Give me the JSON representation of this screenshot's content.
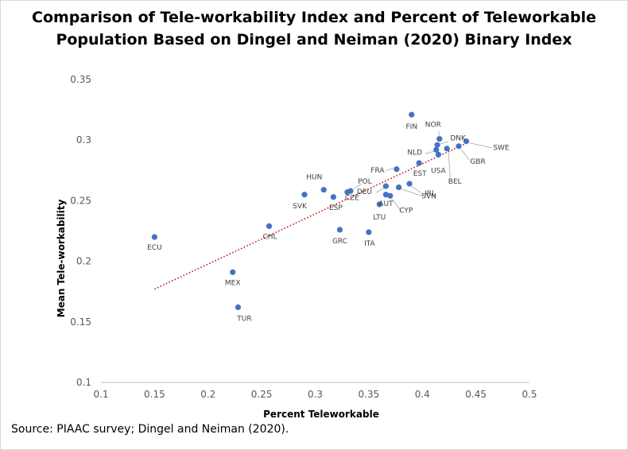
{
  "chart_data": {
    "type": "scatter",
    "title_lines": [
      "Comparison of Tele-workability Index and Percent of Teleworkable",
      "Population Based on Dingel and Neiman (2020) Binary Index"
    ],
    "xlabel": "Percent Teleworkable",
    "ylabel": "Mean Tele-workability",
    "xlim": [
      0.1,
      0.5
    ],
    "ylim": [
      0.1,
      0.35
    ],
    "xticks": [
      "0.1",
      "0.15",
      "0.2",
      "0.25",
      "0.3",
      "0.35",
      "0.4",
      "0.45",
      "0.5"
    ],
    "yticks": [
      "0.1",
      "0.15",
      "0.2",
      "0.25",
      "0.3",
      "0.35"
    ],
    "marker_color": "#4472C4",
    "trendline": {
      "style": "dotted",
      "color": "#C00000",
      "x": [
        0.15,
        0.44
      ],
      "y": [
        0.177,
        0.297
      ]
    },
    "points": [
      {
        "label": "ECU",
        "x": 0.15,
        "y": 0.22
      },
      {
        "label": "MEX",
        "x": 0.223,
        "y": 0.191
      },
      {
        "label": "TUR",
        "x": 0.228,
        "y": 0.162
      },
      {
        "label": "CHL",
        "x": 0.257,
        "y": 0.229
      },
      {
        "label": "SVK",
        "x": 0.29,
        "y": 0.255
      },
      {
        "label": "HUN",
        "x": 0.308,
        "y": 0.259
      },
      {
        "label": "ESP",
        "x": 0.317,
        "y": 0.253
      },
      {
        "label": "CZE",
        "x": 0.33,
        "y": 0.257
      },
      {
        "label": "POL",
        "x": 0.333,
        "y": 0.258
      },
      {
        "label": "GRC",
        "x": 0.323,
        "y": 0.226
      },
      {
        "label": "ITA",
        "x": 0.35,
        "y": 0.224
      },
      {
        "label": "LTU",
        "x": 0.36,
        "y": 0.247
      },
      {
        "label": "DEU",
        "x": 0.366,
        "y": 0.262
      },
      {
        "label": "AUT",
        "x": 0.366,
        "y": 0.255
      },
      {
        "label": "CYP",
        "x": 0.37,
        "y": 0.254
      },
      {
        "label": "SVN",
        "x": 0.378,
        "y": 0.261
      },
      {
        "label": "IRL",
        "x": 0.388,
        "y": 0.264
      },
      {
        "label": "FRA",
        "x": 0.376,
        "y": 0.276
      },
      {
        "label": "EST",
        "x": 0.397,
        "y": 0.281
      },
      {
        "label": "FIN",
        "x": 0.39,
        "y": 0.321
      },
      {
        "label": "NOR",
        "x": 0.416,
        "y": 0.301
      },
      {
        "label": "DNK",
        "x": 0.414,
        "y": 0.296
      },
      {
        "label": "NLD",
        "x": 0.413,
        "y": 0.292
      },
      {
        "label": "USA",
        "x": 0.415,
        "y": 0.288
      },
      {
        "label": "BEL",
        "x": 0.423,
        "y": 0.293
      },
      {
        "label": "GBR",
        "x": 0.434,
        "y": 0.295
      },
      {
        "label": "SWE",
        "x": 0.441,
        "y": 0.299
      }
    ]
  },
  "source": "Source: PIAAC survey; Dingel and Neiman (2020)."
}
